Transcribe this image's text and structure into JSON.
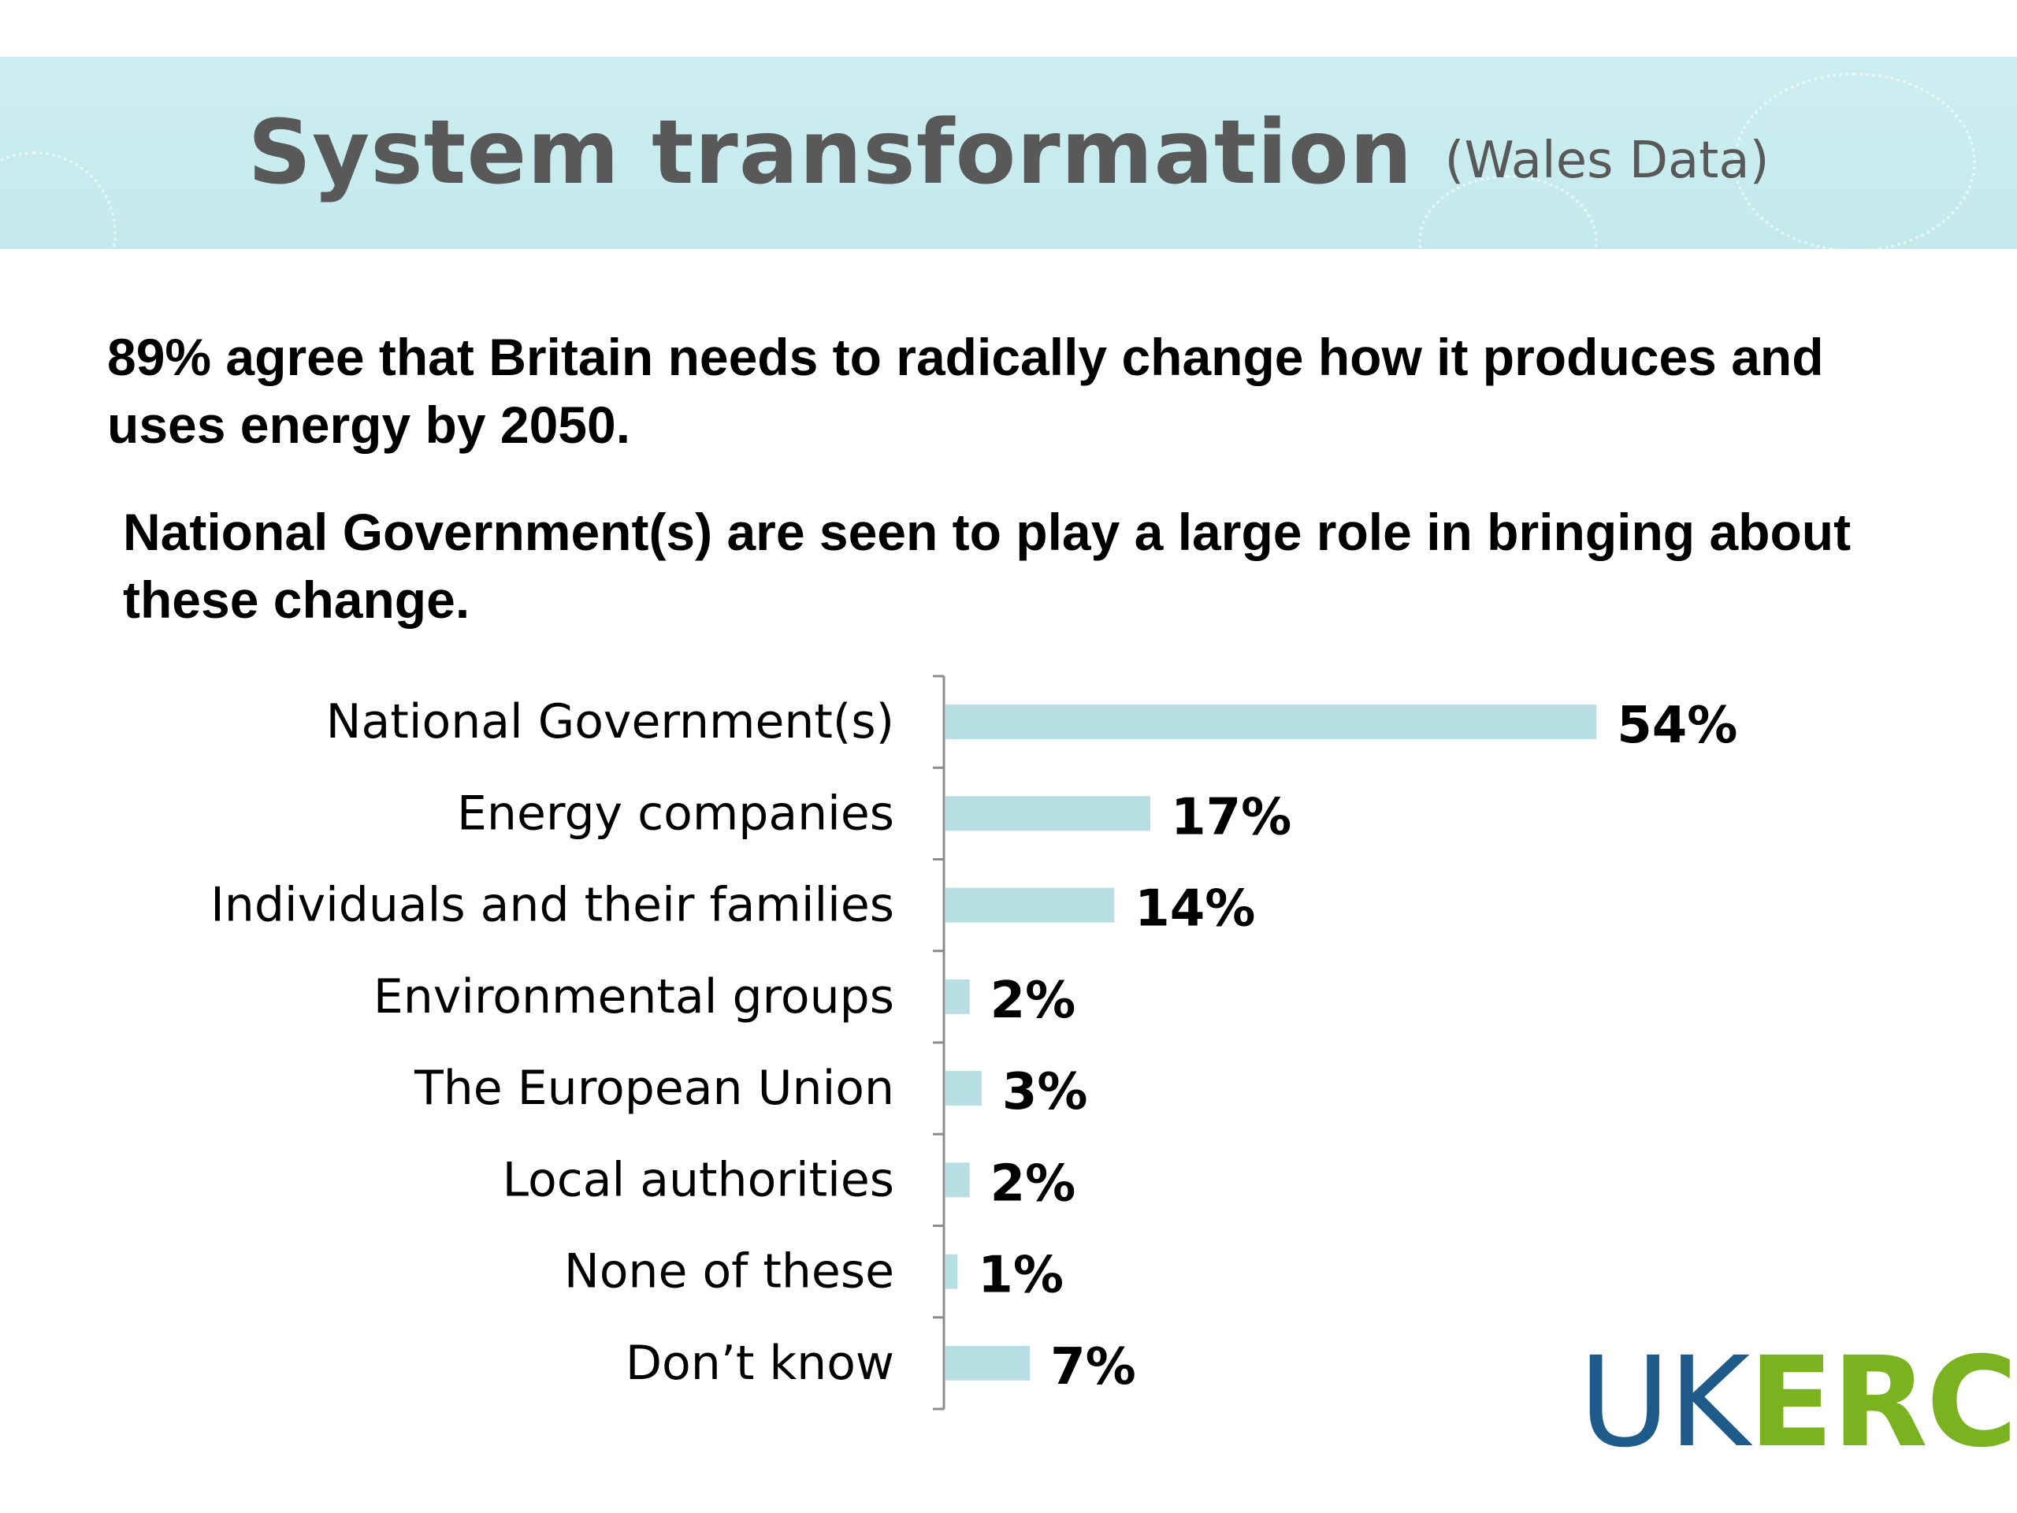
{
  "header": {
    "title": "System transformation",
    "subtitle": "(Wales Data)"
  },
  "body": {
    "paragraph1": "89% agree that Britain needs to radically change how it produces and uses energy by 2050.",
    "paragraph2": "National Government(s) are seen to play a large role in bringing about these change."
  },
  "logo": {
    "part1": "UK",
    "part2": "ERC"
  },
  "colors": {
    "banner": "#c7ebee",
    "bar": "#b7dfe3",
    "axis": "#8c8c8c",
    "logo_blue": "#1e5b8a",
    "logo_green": "#7bb320"
  },
  "chart_data": {
    "type": "bar",
    "orientation": "horizontal",
    "categories": [
      "National Government(s)",
      "Energy companies",
      "Individuals and their families",
      "Environmental groups",
      "The European Union",
      "Local authorities",
      "None of these",
      "Don’t know"
    ],
    "values": [
      54,
      17,
      14,
      2,
      3,
      2,
      1,
      7
    ],
    "value_labels": [
      "54%",
      "17%",
      "14%",
      "2%",
      "3%",
      "2%",
      "1%",
      "7%"
    ],
    "unit": "%",
    "grid": false,
    "legend": false
  }
}
